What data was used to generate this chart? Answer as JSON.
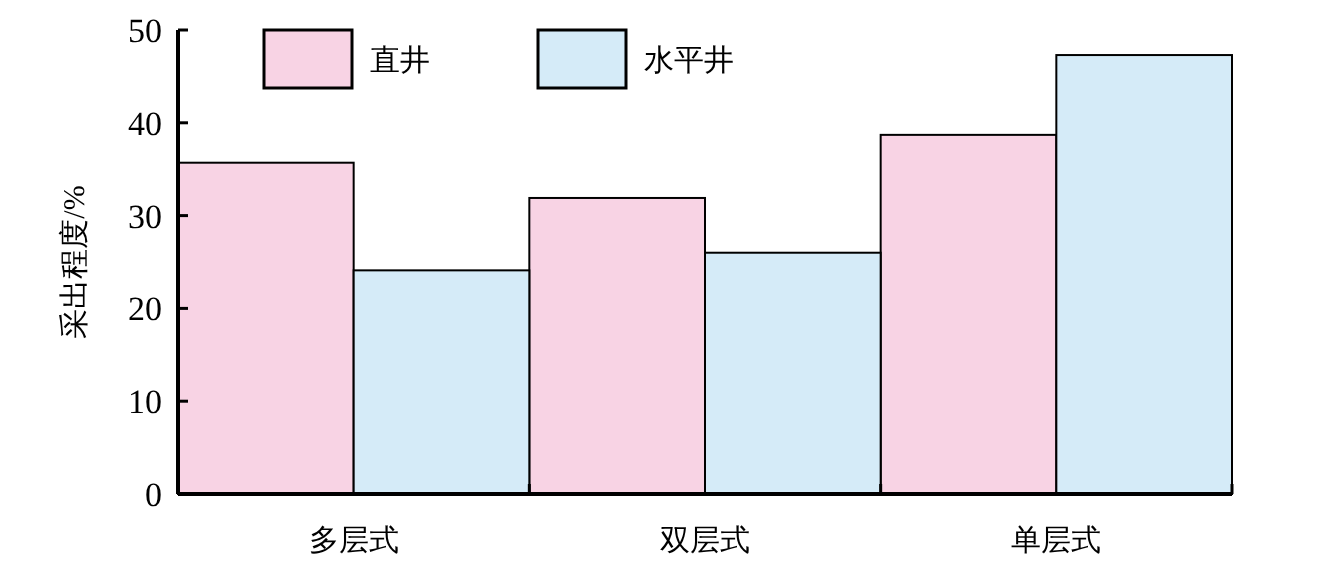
{
  "chart_data": {
    "type": "bar",
    "ylabel": "采出程度/%",
    "categories": [
      "多层式",
      "双层式",
      "单层式"
    ],
    "series": [
      {
        "name": "直井",
        "color": "#f8d3e4",
        "values": [
          35.7,
          31.9,
          38.7
        ]
      },
      {
        "name": "水平井",
        "color": "#d5ebf8",
        "values": [
          24.1,
          26.0,
          47.3
        ]
      }
    ],
    "ylim": [
      0,
      50
    ],
    "yticks": [
      0,
      10,
      20,
      30,
      40,
      50
    ],
    "grid": false,
    "legend": "top left"
  }
}
